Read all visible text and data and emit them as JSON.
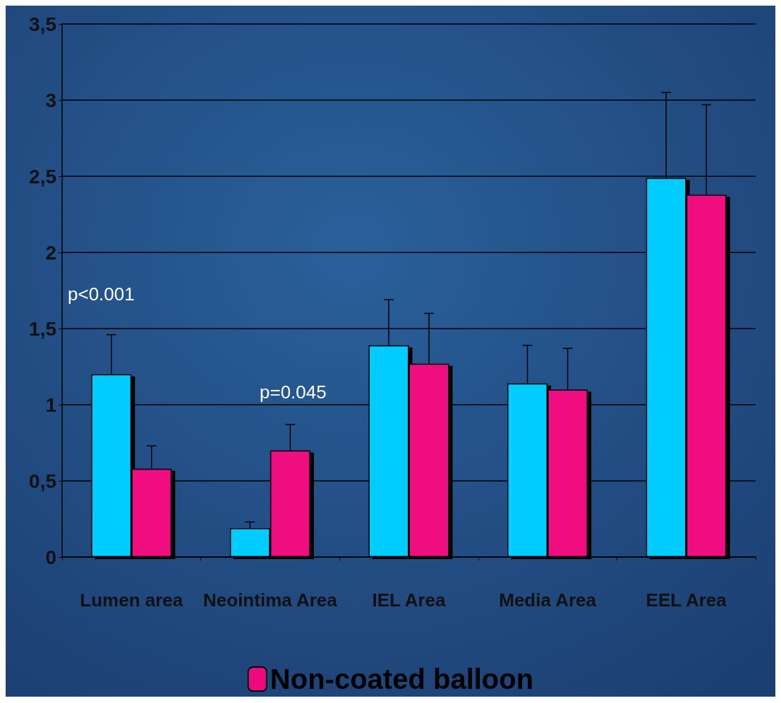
{
  "chart_data": {
    "type": "bar",
    "categories": [
      "Lumen area",
      "Neointima Area",
      "IEL Area",
      "Media Area",
      "EEL Area"
    ],
    "series": [
      {
        "color": "#00ccff",
        "values": [
          1.2,
          0.19,
          1.39,
          1.14,
          2.49
        ],
        "errors": [
          [
            1.2,
            1.46
          ],
          [
            0.19,
            0.23
          ],
          [
            1.39,
            1.69
          ],
          [
            1.14,
            1.39
          ],
          [
            2.49,
            3.05
          ]
        ]
      },
      {
        "name": "Non-coated balloon",
        "color": "#f0087f",
        "values": [
          0.58,
          0.7,
          1.27,
          1.1,
          2.38
        ],
        "errors": [
          [
            0.58,
            0.73
          ],
          [
            0.7,
            0.87
          ],
          [
            1.27,
            1.6
          ],
          [
            1.1,
            1.37
          ],
          [
            2.38,
            2.97
          ]
        ]
      }
    ],
    "ylim": [
      0,
      3.5
    ],
    "yticks": [
      0,
      {
        "value": 0.5,
        "label": "0,5"
      },
      1,
      {
        "value": 1.5,
        "label": "1,5"
      },
      2,
      {
        "value": 2.5,
        "label": "2,5"
      },
      3,
      {
        "value": 3.5,
        "label": "3,5"
      }
    ],
    "grid": true,
    "legend": "bottom",
    "annotations": [
      "p<0.001",
      "p=0.045"
    ]
  }
}
